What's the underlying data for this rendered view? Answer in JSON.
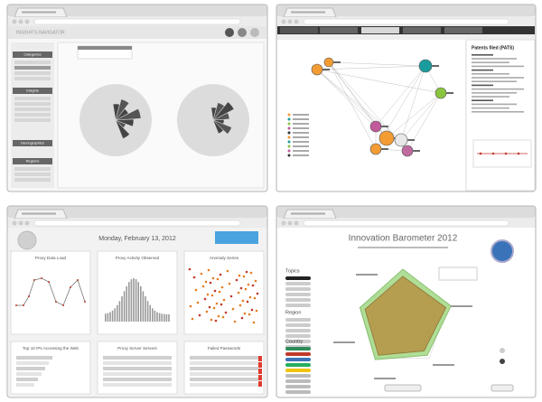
{
  "windows": [
    {
      "sidebar_title": "INSIGHTS NAVIGATOR",
      "sections": [
        "Categories",
        "Insights",
        "Demographics",
        "Regions"
      ]
    },
    {
      "panel_title": "Patents filed (PATS)"
    },
    {
      "date": "Monday, February 13, 2012",
      "panels": [
        "Proxy Data Load",
        "Proxy Activity Observed",
        "Anomaly Series",
        "Top 10 IPs Accessing the Web",
        "Proxy Server Servers",
        "Failed Passwords"
      ]
    },
    {
      "title": "Innovation Barometer 2012",
      "sections": [
        "Topics",
        "Region",
        "Country"
      ]
    }
  ]
}
